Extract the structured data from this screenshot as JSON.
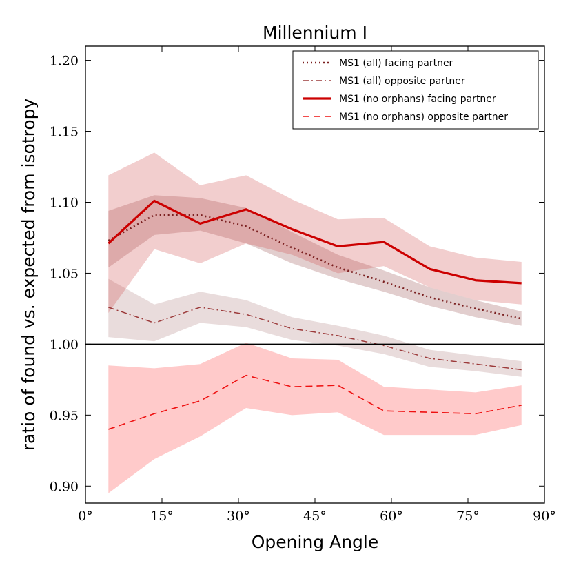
{
  "chart_data": {
    "type": "line",
    "title": "Millennium I",
    "xlabel": "Opening Angle",
    "ylabel": "ratio of found vs. expected from isotropy",
    "xlim": [
      0,
      90
    ],
    "ylim": [
      0.888,
      1.21
    ],
    "xticks": [
      0,
      15,
      30,
      45,
      60,
      75,
      90
    ],
    "xtick_labels": [
      "0°",
      "15°",
      "30°",
      "45°",
      "60°",
      "75°",
      "90°"
    ],
    "yticks": [
      0.9,
      0.95,
      1.0,
      1.05,
      1.1,
      1.15,
      1.2
    ],
    "ytick_labels": [
      "0.90",
      "0.95",
      "1.00",
      "1.05",
      "1.10",
      "1.15",
      "1.20"
    ],
    "reference_line": 1.0,
    "legend_position": "top-right",
    "x": [
      4.5,
      13.5,
      22.5,
      31.5,
      40.5,
      49.5,
      58.5,
      67.5,
      76.5,
      85.5
    ],
    "series": [
      {
        "name": "MS1 (all) facing partner",
        "style": "dotted",
        "color": "#7a1f1f",
        "band_color": "#7a1f1f",
        "band_opacity": 0.22,
        "values": [
          1.073,
          1.091,
          1.091,
          1.083,
          1.068,
          1.054,
          1.044,
          1.033,
          1.025,
          1.018
        ],
        "lower": [
          1.054,
          1.077,
          1.08,
          1.071,
          1.057,
          1.046,
          1.037,
          1.027,
          1.019,
          1.013
        ],
        "upper": [
          1.094,
          1.105,
          1.103,
          1.096,
          1.079,
          1.063,
          1.052,
          1.04,
          1.031,
          1.023
        ]
      },
      {
        "name": "MS1 (all) opposite partner",
        "style": "dashdot",
        "color": "#9c3a3a",
        "band_color": "#b08080",
        "band_opacity": 0.28,
        "values": [
          1.026,
          1.015,
          1.026,
          1.021,
          1.011,
          1.006,
          0.999,
          0.99,
          0.986,
          0.982
        ],
        "lower": [
          1.005,
          1.002,
          1.015,
          1.012,
          1.003,
          0.999,
          0.993,
          0.984,
          0.981,
          0.977
        ],
        "upper": [
          1.046,
          1.028,
          1.037,
          1.031,
          1.019,
          1.013,
          1.006,
          0.996,
          0.992,
          0.988
        ]
      },
      {
        "name": "MS1 (no orphans) facing partner",
        "style": "solid",
        "color": "#cc0000",
        "band_color": "#d25050",
        "band_opacity": 0.28,
        "values": [
          1.071,
          1.101,
          1.085,
          1.095,
          1.081,
          1.069,
          1.072,
          1.053,
          1.045,
          1.043
        ],
        "lower": [
          1.022,
          1.067,
          1.057,
          1.071,
          1.063,
          1.05,
          1.055,
          1.04,
          1.031,
          1.028
        ],
        "upper": [
          1.119,
          1.135,
          1.112,
          1.119,
          1.102,
          1.088,
          1.089,
          1.069,
          1.061,
          1.058
        ]
      },
      {
        "name": "MS1 (no orphans) opposite partner",
        "style": "dashed",
        "color": "#ee1111",
        "band_color": "#ff8080",
        "band_opacity": 0.42,
        "values": [
          0.94,
          0.951,
          0.96,
          0.978,
          0.97,
          0.971,
          0.953,
          0.952,
          0.951,
          0.957
        ],
        "lower": [
          0.895,
          0.919,
          0.935,
          0.955,
          0.95,
          0.952,
          0.936,
          0.936,
          0.936,
          0.943
        ],
        "upper": [
          0.985,
          0.983,
          0.986,
          1.001,
          0.99,
          0.989,
          0.97,
          0.968,
          0.966,
          0.971
        ]
      }
    ]
  }
}
